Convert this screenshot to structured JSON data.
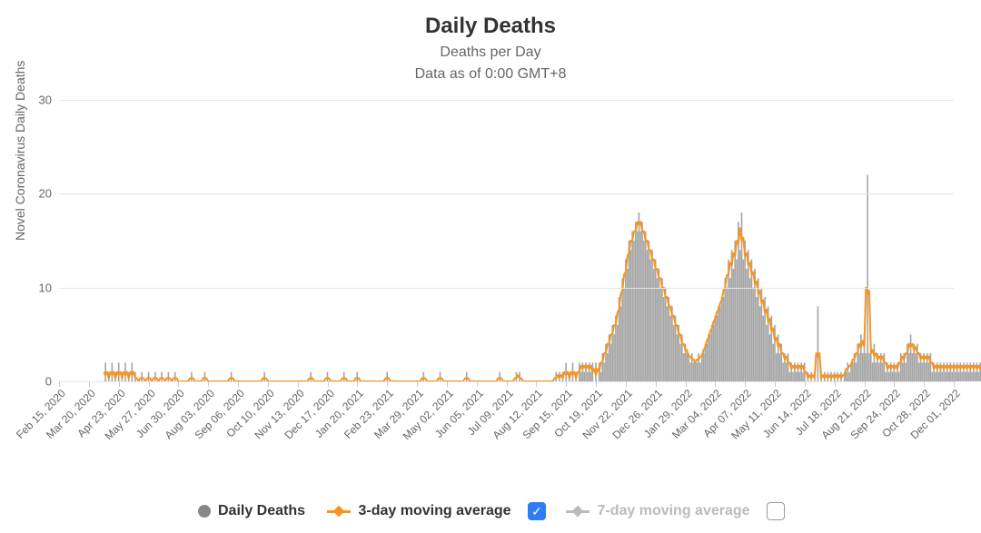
{
  "chart": {
    "type": "bar+line",
    "title": "Daily Deaths",
    "subtitle1": "Deaths per Day",
    "subtitle2": "Data as of 0:00 GMT+8",
    "y_axis_title": "Novel Coronavirus Daily Deaths",
    "background_color": "#ffffff",
    "grid_color": "#e6e6e6",
    "text_color": "#666666",
    "title_color": "#333333",
    "title_fontsize": 24,
    "subtitle_fontsize": 16,
    "axis_label_fontsize": 13,
    "x_label_fontsize": 12,
    "x_label_rotation_deg": -45,
    "ylim": [
      0,
      30
    ],
    "yticks": [
      0,
      10,
      20,
      30
    ],
    "x_tick_labels": [
      "Feb 15, 2020",
      "Mar 20, 2020",
      "Apr 23, 2020",
      "May 27, 2020",
      "Jun 30, 2020",
      "Aug 03, 2020",
      "Sep 06, 2020",
      "Oct 10, 2020",
      "Nov 13, 2020",
      "Dec 17, 2020",
      "Jan 20, 2021",
      "Feb 23, 2021",
      "Mar 29, 2021",
      "May 02, 2021",
      "Jun 05, 2021",
      "Jul 09, 2021",
      "Aug 12, 2021",
      "Sep 15, 2021",
      "Oct 19, 2021",
      "Nov 22, 2021",
      "Dec 26, 2021",
      "Jan 29, 2022",
      "Mar 04, 2022",
      "Apr 07, 2022",
      "May 11, 2022",
      "Jun 14, 2022",
      "Jul 18, 2022",
      "Aug 21, 2022",
      "Sep 24, 2022",
      "Oct 28, 2022",
      "Dec 01, 2022"
    ],
    "series": {
      "bars": {
        "name": "Daily Deaths",
        "color": "#888888",
        "opacity": 0.75,
        "data_start_month_index": 1.5,
        "points_per_month_gap": 18,
        "values": [
          0,
          2,
          0,
          1,
          0,
          2,
          0,
          1,
          0,
          2,
          0,
          1,
          0,
          2,
          0,
          1,
          0,
          2,
          0,
          1,
          0,
          0,
          0,
          1,
          0,
          0,
          0,
          1,
          0,
          0,
          0,
          1,
          0,
          0,
          0,
          1,
          0,
          0,
          0,
          1,
          0,
          0,
          0,
          1,
          0,
          0,
          0,
          0,
          0,
          0,
          0,
          0,
          0,
          1,
          0,
          0,
          0,
          0,
          0,
          0,
          0,
          1,
          0,
          0,
          0,
          0,
          0,
          0,
          0,
          0,
          0,
          0,
          0,
          0,
          0,
          0,
          0,
          1,
          0,
          0,
          0,
          0,
          0,
          0,
          0,
          0,
          0,
          0,
          0,
          0,
          0,
          0,
          0,
          0,
          0,
          0,
          0,
          1,
          0,
          0,
          0,
          0,
          0,
          0,
          0,
          0,
          0,
          0,
          0,
          0,
          0,
          0,
          0,
          0,
          0,
          0,
          0,
          0,
          0,
          0,
          0,
          0,
          0,
          0,
          0,
          1,
          0,
          0,
          0,
          0,
          0,
          0,
          0,
          0,
          0,
          1,
          0,
          0,
          0,
          0,
          0,
          0,
          0,
          0,
          0,
          1,
          0,
          0,
          0,
          0,
          0,
          0,
          0,
          1,
          0,
          0,
          0,
          0,
          0,
          0,
          0,
          0,
          0,
          0,
          0,
          0,
          0,
          0,
          0,
          0,
          0,
          1,
          0,
          0,
          0,
          0,
          0,
          0,
          0,
          0,
          0,
          0,
          0,
          0,
          0,
          0,
          0,
          0,
          0,
          0,
          0,
          0,
          0,
          1,
          0,
          0,
          0,
          0,
          0,
          0,
          0,
          0,
          0,
          1,
          0,
          0,
          0,
          0,
          0,
          0,
          0,
          0,
          0,
          0,
          0,
          0,
          0,
          0,
          0,
          1,
          0,
          0,
          0,
          0,
          0,
          0,
          0,
          0,
          0,
          0,
          0,
          0,
          0,
          0,
          0,
          0,
          0,
          0,
          0,
          1,
          0,
          0,
          0,
          0,
          0,
          0,
          0,
          0,
          0,
          1,
          0,
          1,
          0,
          0,
          0,
          0,
          0,
          0,
          0,
          0,
          0,
          0,
          0,
          0,
          0,
          0,
          0,
          0,
          0,
          0,
          0,
          0,
          0,
          1,
          0,
          1,
          0,
          1,
          0,
          2,
          0,
          1,
          0,
          2,
          0,
          1,
          0,
          2,
          1,
          2,
          1,
          2,
          1,
          2,
          1,
          2,
          0,
          2,
          0,
          2,
          1,
          3,
          2,
          4,
          3,
          5,
          4,
          6,
          5,
          7,
          6,
          9,
          8,
          11,
          10,
          13,
          12,
          15,
          14,
          16,
          15,
          17,
          16,
          18,
          16,
          17,
          15,
          16,
          14,
          15,
          13,
          14,
          12,
          13,
          11,
          12,
          10,
          11,
          9,
          10,
          8,
          9,
          7,
          8,
          6,
          7,
          5,
          6,
          4,
          5,
          3,
          4,
          3,
          3,
          2,
          3,
          2,
          2,
          2,
          3,
          2,
          3,
          3,
          4,
          4,
          5,
          5,
          6,
          6,
          7,
          7,
          8,
          8,
          9,
          9,
          11,
          10,
          13,
          11,
          14,
          12,
          15,
          13,
          17,
          14,
          18,
          13,
          15,
          12,
          14,
          11,
          13,
          10,
          12,
          9,
          11,
          8,
          10,
          7,
          9,
          6,
          8,
          5,
          7,
          4,
          6,
          3,
          5,
          3,
          4,
          2,
          3,
          2,
          3,
          1,
          2,
          1,
          2,
          1,
          2,
          1,
          2,
          1,
          2,
          0,
          1,
          0,
          1,
          0,
          1,
          0,
          8,
          0,
          1,
          0,
          1,
          0,
          1,
          0,
          1,
          0,
          1,
          0,
          1,
          0,
          1,
          0,
          1,
          1,
          2,
          1,
          2,
          2,
          3,
          2,
          4,
          3,
          5,
          3,
          5,
          3,
          22,
          3,
          4,
          2,
          4,
          2,
          3,
          2,
          3,
          2,
          3,
          1,
          2,
          1,
          2,
          1,
          2,
          1,
          2,
          1,
          3,
          2,
          3,
          2,
          4,
          3,
          5,
          3,
          4,
          3,
          4,
          2,
          3,
          2,
          3,
          2,
          3,
          2,
          3,
          1,
          2,
          1,
          2,
          1,
          2,
          1,
          2,
          1,
          2,
          1,
          2,
          1,
          2,
          1,
          2,
          1,
          2,
          1,
          2,
          1,
          2,
          1,
          2,
          1,
          2,
          1,
          2,
          1,
          2,
          1,
          2,
          1,
          2,
          1,
          2,
          1,
          2,
          1,
          2,
          1,
          2,
          1,
          2,
          1,
          2,
          0,
          1,
          0,
          1,
          0,
          1
        ]
      },
      "ma3": {
        "name": "3-day moving average",
        "color": "#f7941d",
        "line_width": 2,
        "marker": "diamond",
        "marker_size": 4
      },
      "ma7": {
        "name": "7-day moving average",
        "color": "#bbbbbb",
        "line_width": 2,
        "marker": "diamond",
        "marker_size": 4,
        "visible": false
      }
    },
    "legend": {
      "items": [
        {
          "key": "bars",
          "label": "Daily Deaths",
          "bold": true,
          "enabled": true
        },
        {
          "key": "ma3",
          "label": "3-day moving average",
          "bold": true,
          "enabled": true
        },
        {
          "key": "cb1",
          "checkbox": true,
          "checked": true
        },
        {
          "key": "ma7",
          "label": "7-day moving average",
          "bold": true,
          "enabled": false
        },
        {
          "key": "cb2",
          "checkbox": true,
          "checked": false
        }
      ]
    }
  }
}
